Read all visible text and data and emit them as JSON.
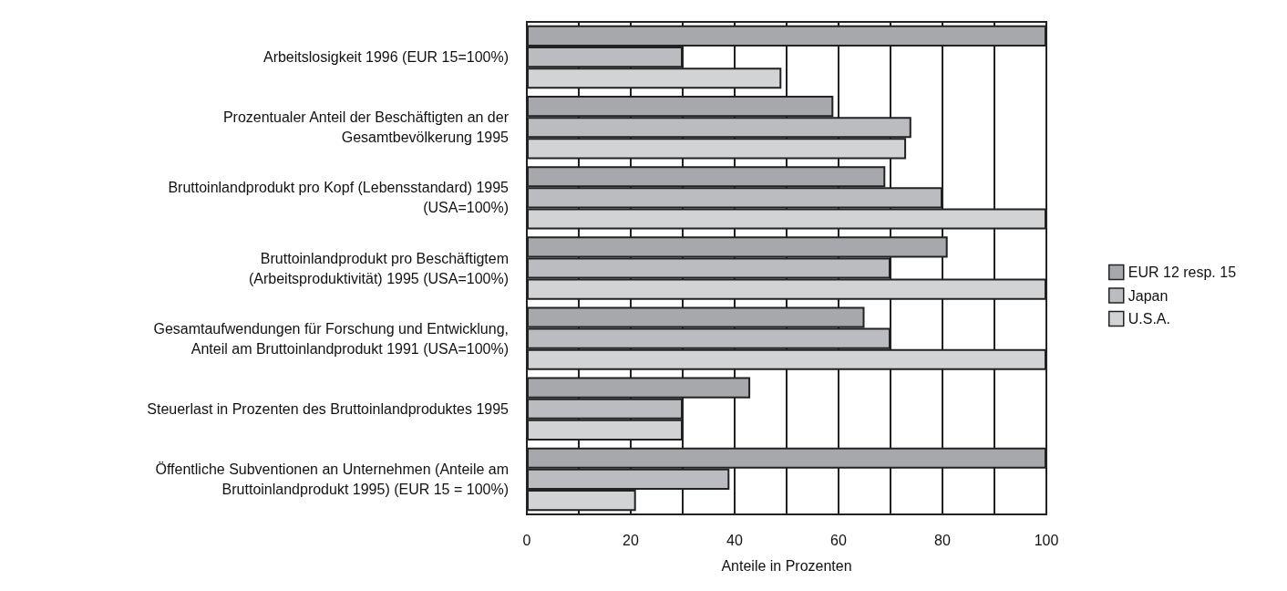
{
  "chart_data": {
    "type": "bar",
    "orientation": "horizontal",
    "xlabel": "Anteile in Prozenten",
    "categories": [
      "Arbeitslosigkeit 1996 (EUR 15=100%)",
      "Prozentualer Anteil der Beschäftigten an der\nGesamtbevölkerung 1995",
      "Bruttoinlandprodukt pro Kopf (Lebensstandard) 1995\n(USA=100%)",
      "Bruttoinlandprodukt pro Beschäftigtem\n(Arbeitsproduktivität) 1995 (USA=100%)",
      "Gesamtaufwendungen für Forschung und Entwicklung,\nAnteil am Bruttoinlandprodukt 1991 (USA=100%)",
      "Steuerlast in Prozenten des Bruttoinlandproduktes 1995",
      "Öffentliche Subventionen an Unternehmen (Anteile am\nBruttoinlandprodukt 1995) (EUR 15 = 100%)"
    ],
    "series": [
      {
        "name": "EUR 12 resp. 15",
        "color": "#a7a8ab",
        "values": [
          100,
          59,
          69,
          81,
          65,
          43,
          100
        ]
      },
      {
        "name": "Japan",
        "color": "#bbbcbf",
        "values": [
          30,
          74,
          80,
          70,
          70,
          30,
          39
        ]
      },
      {
        "name": "U.S.A.",
        "color": "#d2d3d5",
        "values": [
          49,
          73,
          100,
          100,
          100,
          30,
          21
        ]
      }
    ],
    "xlim": [
      0,
      100
    ],
    "xticks": [
      0,
      {
        "value": 10,
        "label": null
      },
      20,
      {
        "value": 30,
        "label": null
      },
      40,
      {
        "value": 50,
        "label": null
      },
      60,
      {
        "value": 70,
        "label": null
      },
      80,
      {
        "value": 90,
        "label": null
      },
      100
    ],
    "grid": "x",
    "legend": "right"
  }
}
